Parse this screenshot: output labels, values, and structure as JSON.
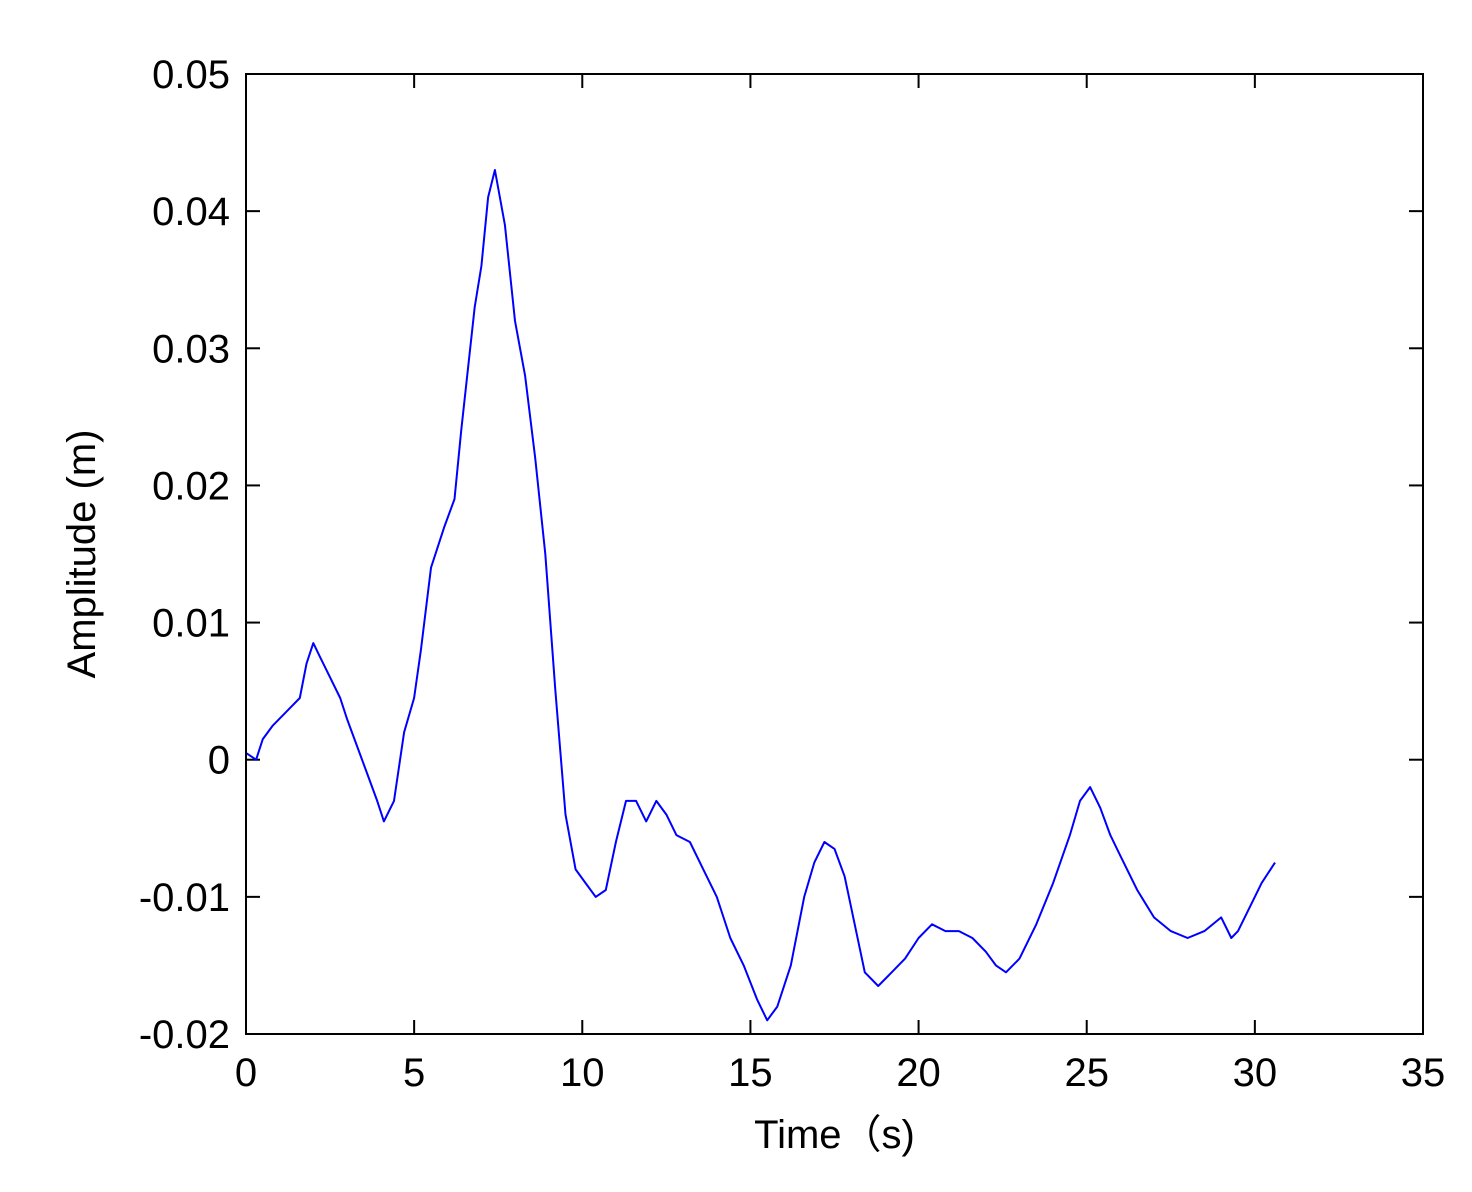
{
  "chart_data": {
    "type": "line",
    "title": "",
    "xlabel": "Time（s)",
    "ylabel": "Amplitude (m)",
    "xlim": [
      0,
      35
    ],
    "ylim": [
      -0.02,
      0.05
    ],
    "xticks": [
      0,
      5,
      10,
      15,
      20,
      25,
      30,
      35
    ],
    "xtick_labels": [
      "0",
      "5",
      "10",
      "15",
      "20",
      "25",
      "30",
      "35"
    ],
    "yticks": [
      -0.02,
      -0.01,
      0,
      0.01,
      0.02,
      0.03,
      0.04,
      0.05
    ],
    "ytick_labels": [
      "-0.02",
      "-0.01",
      "0",
      "0.01",
      "0.02",
      "0.03",
      "0.04",
      "0.05"
    ],
    "grid": false,
    "legend": "none",
    "series": [
      {
        "color": "#0000ff",
        "x": [
          0,
          0.3,
          0.5,
          0.8,
          1.2,
          1.6,
          1.8,
          2.0,
          2.2,
          2.5,
          2.8,
          3.0,
          3.3,
          3.6,
          3.9,
          4.1,
          4.4,
          4.7,
          5.0,
          5.2,
          5.5,
          5.9,
          6.2,
          6.4,
          6.8,
          7.0,
          7.2,
          7.4,
          7.7,
          8.0,
          8.3,
          8.6,
          8.9,
          9.2,
          9.5,
          9.8,
          10.1,
          10.4,
          10.7,
          11.0,
          11.3,
          11.6,
          11.9,
          12.2,
          12.5,
          12.8,
          13.2,
          13.6,
          14.0,
          14.4,
          14.8,
          15.2,
          15.5,
          15.8,
          16.2,
          16.6,
          16.9,
          17.2,
          17.5,
          17.8,
          18.1,
          18.4,
          18.8,
          19.2,
          19.6,
          20.0,
          20.4,
          20.8,
          21.2,
          21.6,
          22.0,
          22.3,
          22.6,
          23.0,
          23.5,
          24.0,
          24.5,
          24.8,
          25.1,
          25.4,
          25.7,
          26.0,
          26.5,
          27.0,
          27.5,
          28.0,
          28.5,
          29.0,
          29.3,
          29.5,
          29.8,
          30.2,
          30.6
        ],
        "y": [
          0.0005,
          0.0,
          0.0015,
          0.0025,
          0.0035,
          0.0045,
          0.007,
          0.0085,
          0.0075,
          0.006,
          0.0045,
          0.003,
          0.001,
          -0.001,
          -0.003,
          -0.0045,
          -0.003,
          0.002,
          0.0045,
          0.008,
          0.014,
          0.017,
          0.019,
          0.024,
          0.033,
          0.036,
          0.041,
          0.043,
          0.039,
          0.032,
          0.028,
          0.022,
          0.015,
          0.005,
          -0.004,
          -0.008,
          -0.009,
          -0.01,
          -0.0095,
          -0.006,
          -0.003,
          -0.003,
          -0.0045,
          -0.003,
          -0.004,
          -0.0055,
          -0.006,
          -0.008,
          -0.01,
          -0.013,
          -0.015,
          -0.0175,
          -0.019,
          -0.018,
          -0.015,
          -0.01,
          -0.0075,
          -0.006,
          -0.0065,
          -0.0085,
          -0.012,
          -0.0155,
          -0.0165,
          -0.0155,
          -0.0145,
          -0.013,
          -0.012,
          -0.0125,
          -0.0125,
          -0.013,
          -0.014,
          -0.015,
          -0.0155,
          -0.0145,
          -0.012,
          -0.009,
          -0.0055,
          -0.003,
          -0.002,
          -0.0035,
          -0.0055,
          -0.007,
          -0.0095,
          -0.0115,
          -0.0125,
          -0.013,
          -0.0125,
          -0.0115,
          -0.013,
          -0.0125,
          -0.011,
          -0.009,
          -0.0075
        ]
      }
    ]
  }
}
